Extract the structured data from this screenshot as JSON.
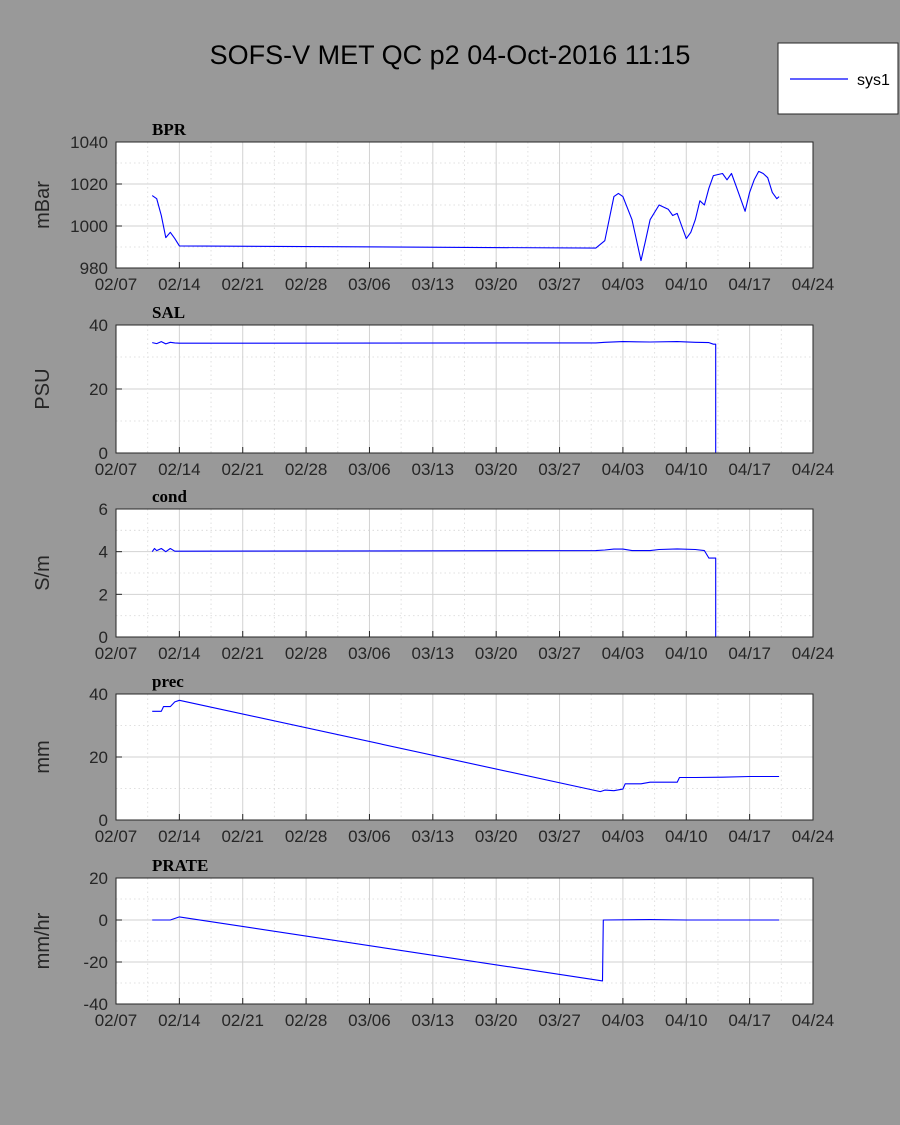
{
  "figure_title": "SOFS-V MET QC p2 04-Oct-2016 11:15",
  "legend": {
    "entries": [
      "sys1"
    ],
    "placement": "top-right",
    "line_color": "#0000ff"
  },
  "colors": {
    "background": "#999999",
    "axes_bg": "#ffffff",
    "series": "#0000ff",
    "grid": "#cfcfcf",
    "axis": "#262626"
  },
  "chart_data": [
    {
      "type": "line",
      "title": "BPR",
      "ylabel": "mBar",
      "xlim": [
        "2016-02-07",
        "2016-04-24"
      ],
      "x_ticks": [
        "02/07",
        "02/14",
        "02/21",
        "02/28",
        "03/06",
        "03/13",
        "03/20",
        "03/27",
        "04/03",
        "04/10",
        "04/17",
        "04/24"
      ],
      "ylim": [
        980,
        1040
      ],
      "y_ticks": [
        980,
        1000,
        1020,
        1040
      ],
      "grid": true,
      "series": [
        {
          "name": "sys1",
          "points": [
            [
              "2016-02-11T00:00",
              1014.5
            ],
            [
              "2016-02-11T12:00",
              1013
            ],
            [
              "2016-02-12T00:00",
              1005
            ],
            [
              "2016-02-12T12:00",
              994.5
            ],
            [
              "2016-02-13T00:00",
              997
            ],
            [
              "2016-02-13T12:00",
              994
            ],
            [
              "2016-02-14T00:00",
              990.5
            ],
            [
              "2016-03-31T00:00",
              989.5
            ],
            [
              "2016-04-01T00:00",
              993
            ],
            [
              "2016-04-02T00:00",
              1014
            ],
            [
              "2016-04-02T12:00",
              1015.5
            ],
            [
              "2016-04-03T00:00",
              1014
            ],
            [
              "2016-04-04T00:00",
              1003
            ],
            [
              "2016-04-05T00:00",
              983.5
            ],
            [
              "2016-04-05T12:00",
              993
            ],
            [
              "2016-04-06T00:00",
              1003
            ],
            [
              "2016-04-07T00:00",
              1010
            ],
            [
              "2016-04-08T00:00",
              1008
            ],
            [
              "2016-04-08T12:00",
              1005
            ],
            [
              "2016-04-09T00:00",
              1006
            ],
            [
              "2016-04-09T12:00",
              1000
            ],
            [
              "2016-04-10T00:00",
              994
            ],
            [
              "2016-04-10T12:00",
              997
            ],
            [
              "2016-04-11T00:00",
              1003
            ],
            [
              "2016-04-11T12:00",
              1012
            ],
            [
              "2016-04-12T00:00",
              1010
            ],
            [
              "2016-04-12T12:00",
              1018
            ],
            [
              "2016-04-13T00:00",
              1024
            ],
            [
              "2016-04-14T00:00",
              1025
            ],
            [
              "2016-04-14T12:00",
              1022
            ],
            [
              "2016-04-15T00:00",
              1025
            ],
            [
              "2016-04-15T12:00",
              1019
            ],
            [
              "2016-04-16T00:00",
              1013
            ],
            [
              "2016-04-16T12:00",
              1007
            ],
            [
              "2016-04-17T00:00",
              1016
            ],
            [
              "2016-04-17T12:00",
              1022
            ],
            [
              "2016-04-18T00:00",
              1026
            ],
            [
              "2016-04-18T12:00",
              1025
            ],
            [
              "2016-04-19T00:00",
              1023
            ],
            [
              "2016-04-19T12:00",
              1016
            ],
            [
              "2016-04-20T00:00",
              1013
            ],
            [
              "2016-04-20T06:00",
              1014
            ]
          ]
        }
      ]
    },
    {
      "type": "line",
      "title": "SAL",
      "ylabel": "PSU",
      "xlim": [
        "2016-02-07",
        "2016-04-24"
      ],
      "x_ticks": [
        "02/07",
        "02/14",
        "02/21",
        "02/28",
        "03/06",
        "03/13",
        "03/20",
        "03/27",
        "04/03",
        "04/10",
        "04/17",
        "04/24"
      ],
      "ylim": [
        0,
        40
      ],
      "y_ticks": [
        0,
        20,
        40
      ],
      "grid": true,
      "series": [
        {
          "name": "sys1",
          "points": [
            [
              "2016-02-11T00:00",
              34.5
            ],
            [
              "2016-02-11T12:00",
              34.2
            ],
            [
              "2016-02-12T00:00",
              34.8
            ],
            [
              "2016-02-12T12:00",
              34.1
            ],
            [
              "2016-02-13T00:00",
              34.6
            ],
            [
              "2016-02-13T12:00",
              34.4
            ],
            [
              "2016-02-14T00:00",
              34.3
            ],
            [
              "2016-03-31T00:00",
              34.4
            ],
            [
              "2016-04-01T00:00",
              34.6
            ],
            [
              "2016-04-03T00:00",
              34.8
            ],
            [
              "2016-04-06T00:00",
              34.7
            ],
            [
              "2016-04-09T00:00",
              34.8
            ],
            [
              "2016-04-11T00:00",
              34.6
            ],
            [
              "2016-04-12T12:00",
              34.5
            ],
            [
              "2016-04-13T00:00",
              34
            ],
            [
              "2016-04-13T06:00",
              34
            ],
            [
              "2016-04-13T06:01",
              0
            ],
            [
              "2016-04-20T06:00",
              0
            ]
          ]
        }
      ]
    },
    {
      "type": "line",
      "title": "cond",
      "ylabel": "S/m",
      "xlim": [
        "2016-02-07",
        "2016-04-24"
      ],
      "x_ticks": [
        "02/07",
        "02/14",
        "02/21",
        "02/28",
        "03/06",
        "03/13",
        "03/20",
        "03/27",
        "04/03",
        "04/10",
        "04/17",
        "04/24"
      ],
      "ylim": [
        0,
        6
      ],
      "y_ticks": [
        0,
        2,
        4,
        6
      ],
      "grid": true,
      "series": [
        {
          "name": "sys1",
          "points": [
            [
              "2016-02-11T00:00",
              4.0
            ],
            [
              "2016-02-11T06:00",
              4.15
            ],
            [
              "2016-02-11T12:00",
              4.05
            ],
            [
              "2016-02-12T00:00",
              4.15
            ],
            [
              "2016-02-12T12:00",
              4.0
            ],
            [
              "2016-02-13T00:00",
              4.15
            ],
            [
              "2016-02-13T12:00",
              4.02
            ],
            [
              "2016-02-14T00:00",
              4.02
            ],
            [
              "2016-03-31T00:00",
              4.05
            ],
            [
              "2016-04-01T00:00",
              4.08
            ],
            [
              "2016-04-02T00:00",
              4.12
            ],
            [
              "2016-04-03T00:00",
              4.12
            ],
            [
              "2016-04-04T00:00",
              4.05
            ],
            [
              "2016-04-06T00:00",
              4.05
            ],
            [
              "2016-04-07T00:00",
              4.1
            ],
            [
              "2016-04-09T00:00",
              4.13
            ],
            [
              "2016-04-11T00:00",
              4.1
            ],
            [
              "2016-04-12T00:00",
              4.05
            ],
            [
              "2016-04-12T12:00",
              3.7
            ],
            [
              "2016-04-13T06:00",
              3.7
            ],
            [
              "2016-04-13T06:01",
              0
            ],
            [
              "2016-04-20T06:00",
              0
            ]
          ]
        }
      ]
    },
    {
      "type": "line",
      "title": "prec",
      "ylabel": "mm",
      "xlim": [
        "2016-02-07",
        "2016-04-24"
      ],
      "x_ticks": [
        "02/07",
        "02/14",
        "02/21",
        "02/28",
        "03/06",
        "03/13",
        "03/20",
        "03/27",
        "04/03",
        "04/10",
        "04/17",
        "04/24"
      ],
      "ylim": [
        0,
        40
      ],
      "y_ticks": [
        0,
        20,
        40
      ],
      "grid": true,
      "series": [
        {
          "name": "sys1",
          "points": [
            [
              "2016-02-11T00:00",
              34.5
            ],
            [
              "2016-02-12T00:00",
              34.5
            ],
            [
              "2016-02-12T06:00",
              36
            ],
            [
              "2016-02-13T00:00",
              36
            ],
            [
              "2016-02-13T12:00",
              37.5
            ],
            [
              "2016-02-14T00:00",
              38
            ],
            [
              "2016-03-31T12:00",
              9
            ],
            [
              "2016-04-01T00:00",
              9.5
            ],
            [
              "2016-04-02T00:00",
              9.3
            ],
            [
              "2016-04-03T00:00",
              9.8
            ],
            [
              "2016-04-03T06:00",
              11.5
            ],
            [
              "2016-04-05T00:00",
              11.5
            ],
            [
              "2016-04-06T00:00",
              12
            ],
            [
              "2016-04-09T00:00",
              12
            ],
            [
              "2016-04-09T06:00",
              13.5
            ],
            [
              "2016-04-11T00:00",
              13.5
            ],
            [
              "2016-04-14T00:00",
              13.6
            ],
            [
              "2016-04-17T00:00",
              13.8
            ],
            [
              "2016-04-20T06:00",
              13.8
            ]
          ]
        }
      ]
    },
    {
      "type": "line",
      "title": "PRATE",
      "ylabel": "mm/hr",
      "xlim": [
        "2016-02-07",
        "2016-04-24"
      ],
      "x_ticks": [
        "02/07",
        "02/14",
        "02/21",
        "02/28",
        "03/06",
        "03/13",
        "03/20",
        "03/27",
        "04/03",
        "04/10",
        "04/17",
        "04/24"
      ],
      "ylim": [
        -40,
        20
      ],
      "y_ticks": [
        -40,
        -20,
        0,
        20
      ],
      "grid": true,
      "series": [
        {
          "name": "sys1",
          "points": [
            [
              "2016-02-11T00:00",
              0
            ],
            [
              "2016-02-13T00:00",
              0
            ],
            [
              "2016-02-14T00:00",
              1.5
            ],
            [
              "2016-03-31T18:00",
              -29
            ],
            [
              "2016-03-31T20:00",
              0
            ],
            [
              "2016-04-06T00:00",
              0.2
            ],
            [
              "2016-04-10T00:00",
              0
            ],
            [
              "2016-04-20T06:00",
              0
            ]
          ]
        }
      ]
    }
  ]
}
